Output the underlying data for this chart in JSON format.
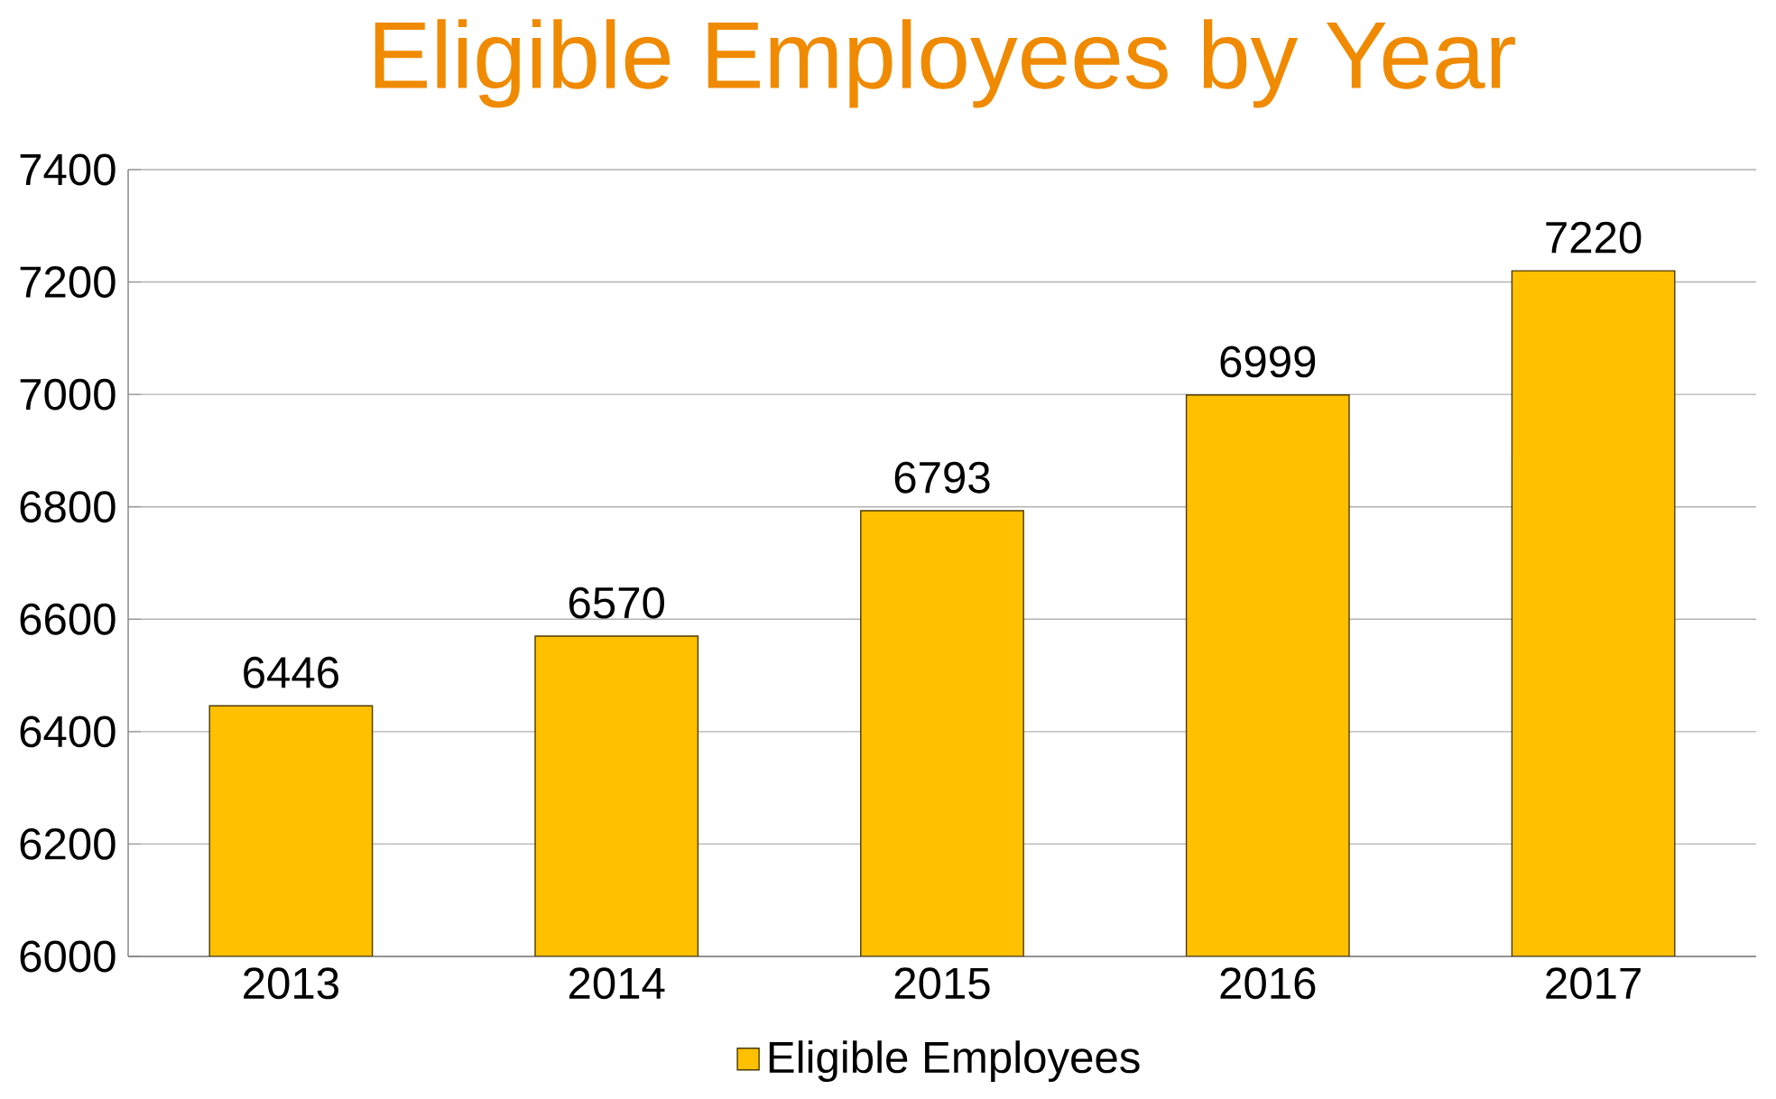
{
  "chart_data": {
    "type": "bar",
    "title": "Eligible Employees by Year",
    "categories": [
      "2013",
      "2014",
      "2015",
      "2016",
      "2017"
    ],
    "series": [
      {
        "name": "Eligible Employees",
        "color": "#ffc000",
        "values": [
          6446,
          6570,
          6793,
          6999,
          7220
        ]
      }
    ],
    "ylim": [
      6000,
      7400
    ],
    "yticks": [
      6000,
      6200,
      6400,
      6600,
      6800,
      7000,
      7200,
      7400
    ],
    "grid": "y",
    "legend": "bottom",
    "data_labels": true
  }
}
